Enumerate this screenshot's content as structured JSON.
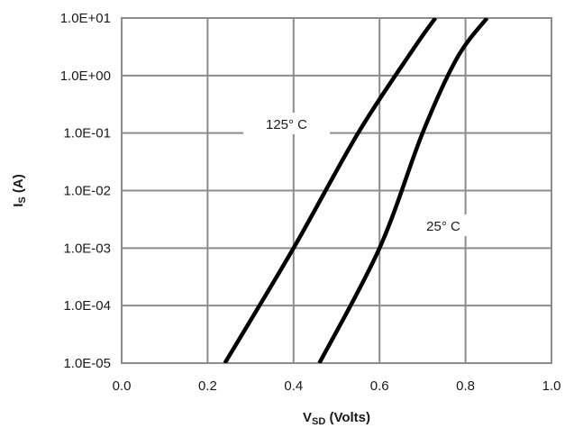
{
  "chart_data": {
    "type": "line",
    "xlabel": {
      "main": "V",
      "sub": "SD",
      "rest": " (Volts)"
    },
    "ylabel": {
      "main": "I",
      "sub": "S",
      "rest": " (A)"
    },
    "x_ticks": [
      "0.0",
      "0.2",
      "0.4",
      "0.6",
      "0.8",
      "1.0"
    ],
    "x_tick_values": [
      0.0,
      0.2,
      0.4,
      0.6,
      0.8,
      1.0
    ],
    "xlim": [
      0.0,
      1.0
    ],
    "y_scale": "log",
    "ylim": [
      1e-05,
      10
    ],
    "y_ticks": [
      "1.0E+01",
      "1.0E+00",
      "1.0E-01",
      "1.0E-02",
      "1.0E-03",
      "1.0E-04",
      "1.0E-05"
    ],
    "y_tick_values": [
      10,
      1,
      0.1,
      0.01,
      0.001,
      0.0001,
      1e-05
    ],
    "grid": true,
    "series": [
      {
        "name": "125° C",
        "label_text": "125°  C",
        "points": [
          [
            0.24,
            1e-05
          ],
          [
            0.4,
            0.001
          ],
          [
            0.55,
            0.1
          ],
          [
            0.68,
            3.0
          ],
          [
            0.73,
            10
          ]
        ]
      },
      {
        "name": "25° C",
        "label_text": "25°  C",
        "points": [
          [
            0.46,
            1e-05
          ],
          [
            0.6,
            0.001
          ],
          [
            0.7,
            0.1
          ],
          [
            0.78,
            2.0
          ],
          [
            0.85,
            10
          ]
        ]
      }
    ]
  }
}
